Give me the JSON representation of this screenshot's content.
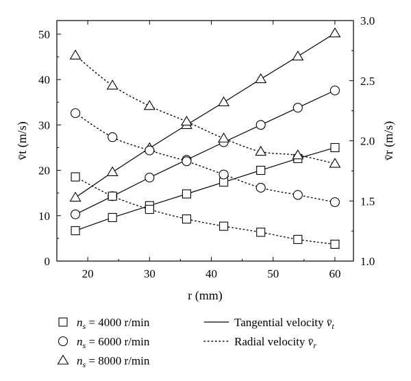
{
  "chart_data": {
    "type": "line",
    "x": [
      18,
      24,
      30,
      36,
      42,
      48,
      54,
      60
    ],
    "xlabel": "r (mm)",
    "ylabel_left": "v̄t (m/s)",
    "ylabel_right": "v̄r (m/s)",
    "xlim": [
      15,
      63
    ],
    "ylim_left": [
      0,
      53
    ],
    "ylim_right": [
      1.0,
      3.0
    ],
    "xticks": [
      "20",
      "30",
      "40",
      "50",
      "60"
    ],
    "yticks_left": [
      "0",
      "10",
      "20",
      "30",
      "40",
      "50"
    ],
    "yticks_right": [
      "1.0",
      "1.5",
      "2.0",
      "2.5",
      "3.0"
    ],
    "grid": false,
    "legend_position": "bottom",
    "series": [
      {
        "name": "ns = 4000 r/min",
        "axis": "left",
        "kind": "tangential",
        "marker": "square",
        "values": [
          6.7,
          9.6,
          12.2,
          14.8,
          17.4,
          20.0,
          22.6,
          25.0
        ]
      },
      {
        "name": "ns = 6000 r/min",
        "axis": "left",
        "kind": "tangential",
        "marker": "circle",
        "values": [
          10.3,
          14.3,
          18.4,
          22.3,
          26.2,
          30.0,
          33.8,
          37.6
        ]
      },
      {
        "name": "ns = 8000 r/min",
        "axis": "left",
        "kind": "tangential",
        "marker": "triangle",
        "values": [
          14.0,
          19.6,
          24.9,
          30.0,
          35.0,
          40.1,
          45.1,
          50.2
        ]
      },
      {
        "name": "ns = 4000 r/min",
        "axis": "right",
        "kind": "radial",
        "marker": "square",
        "values": [
          1.7,
          1.54,
          1.43,
          1.35,
          1.29,
          1.24,
          1.18,
          1.14
        ]
      },
      {
        "name": "ns = 6000 r/min",
        "axis": "right",
        "kind": "radial",
        "marker": "circle",
        "values": [
          2.23,
          2.03,
          1.92,
          1.83,
          1.72,
          1.61,
          1.55,
          1.49
        ]
      },
      {
        "name": "ns = 8000 r/min",
        "axis": "right",
        "kind": "radial",
        "marker": "triangle",
        "values": [
          2.71,
          2.46,
          2.29,
          2.16,
          2.02,
          1.91,
          1.88,
          1.81
        ]
      }
    ],
    "legend": {
      "markers": [
        {
          "marker": "square",
          "symbol": "n",
          "subscript": "s",
          "rest": " = 4000 r/min"
        },
        {
          "marker": "circle",
          "symbol": "n",
          "subscript": "s",
          "rest": " = 6000 r/min"
        },
        {
          "marker": "triangle",
          "symbol": "n",
          "subscript": "s",
          "rest": " = 8000 r/min"
        }
      ],
      "lines": [
        {
          "style": "solid",
          "text": "Tangential velocity ",
          "symbol": "v̄",
          "subscript": "t"
        },
        {
          "style": "dotted",
          "text": "Radial velocity ",
          "symbol": "v̄",
          "subscript": "r"
        }
      ]
    }
  }
}
